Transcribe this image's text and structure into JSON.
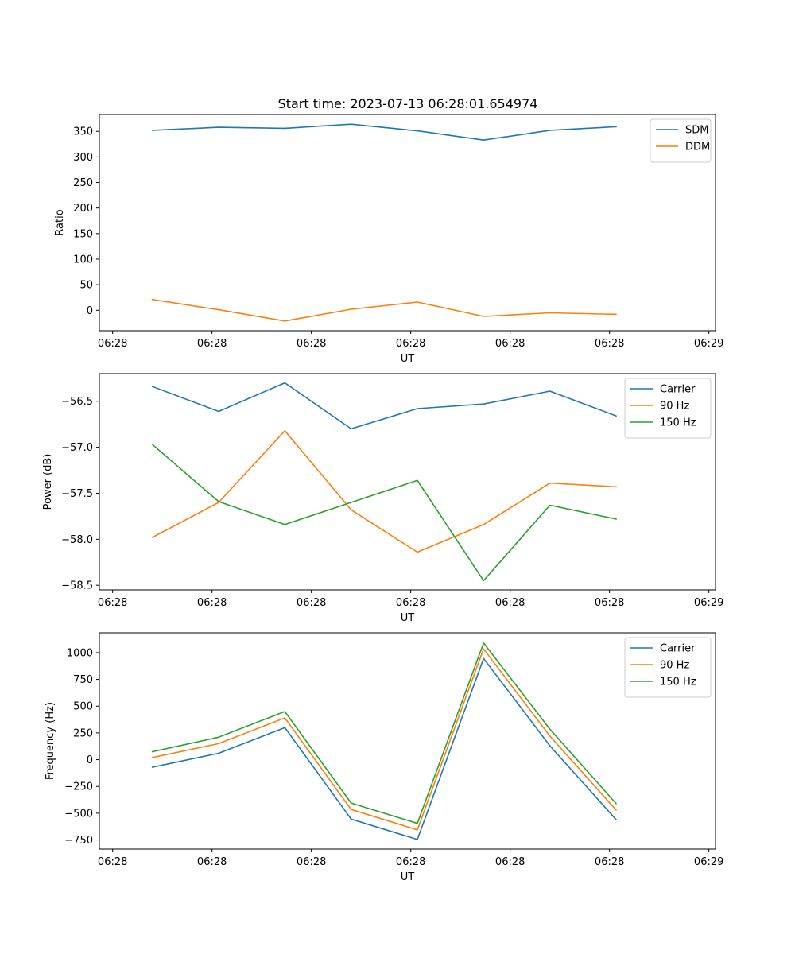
{
  "figure": {
    "title": "Start time: 2023-07-13 06:28:01.654974"
  },
  "colors": {
    "blue": "#1f77b4",
    "orange": "#ff7f0e",
    "green": "#2ca02c"
  },
  "chart_data": [
    {
      "type": "line",
      "title": "Start time: 2023-07-13 06:28:01.654974",
      "xlabel": "UT",
      "ylabel": "Ratio",
      "x": [
        1,
        2,
        3,
        4,
        5,
        6,
        7,
        8
      ],
      "xlim": [
        0.2,
        9.5
      ],
      "xticks": [
        0.4,
        1.9,
        3.4,
        4.9,
        6.4,
        7.9,
        9.4
      ],
      "xtick_labels": [
        "06:28",
        "06:28",
        "06:28",
        "06:28",
        "06:28",
        "06:28",
        "06:29"
      ],
      "ylim": [
        -40,
        383
      ],
      "yticks": [
        0,
        50,
        100,
        150,
        200,
        250,
        300,
        350
      ],
      "ytick_labels": [
        "0",
        "50",
        "100",
        "150",
        "200",
        "250",
        "300",
        "350"
      ],
      "legend_position": "top-right",
      "series": [
        {
          "name": "SDM",
          "color_key": "blue",
          "values": [
            352,
            358,
            356,
            364,
            351,
            333,
            352,
            359
          ]
        },
        {
          "name": "DDM",
          "color_key": "orange",
          "values": [
            21,
            1,
            -21,
            2,
            16,
            -12,
            -5,
            -8
          ]
        }
      ]
    },
    {
      "type": "line",
      "title": "",
      "xlabel": "UT",
      "ylabel": "Power (dB)",
      "x": [
        1,
        2,
        3,
        4,
        5,
        6,
        7,
        8
      ],
      "xlim": [
        0.2,
        9.5
      ],
      "xticks": [
        0.4,
        1.9,
        3.4,
        4.9,
        6.4,
        7.9,
        9.4
      ],
      "xtick_labels": [
        "06:28",
        "06:28",
        "06:28",
        "06:28",
        "06:28",
        "06:28",
        "06:29"
      ],
      "ylim": [
        -58.55,
        -56.2
      ],
      "yticks": [
        -58.5,
        -58.0,
        -57.5,
        -57.0,
        -56.5
      ],
      "ytick_labels": [
        "−58.5",
        "−58.0",
        "−57.5",
        "−57.0",
        "−56.5"
      ],
      "legend_position": "top-right",
      "series": [
        {
          "name": "Carrier",
          "color_key": "blue",
          "values": [
            -56.34,
            -56.61,
            -56.3,
            -56.8,
            -56.58,
            -56.53,
            -56.39,
            -56.66
          ]
        },
        {
          "name": "90 Hz",
          "color_key": "orange",
          "values": [
            -57.98,
            -57.6,
            -56.82,
            -57.68,
            -58.14,
            -57.84,
            -57.39,
            -57.43
          ]
        },
        {
          "name": "150 Hz",
          "color_key": "green",
          "values": [
            -56.97,
            -57.59,
            -57.84,
            -57.6,
            -57.36,
            -58.45,
            -57.63,
            -57.78
          ]
        }
      ]
    },
    {
      "type": "line",
      "title": "",
      "xlabel": "UT",
      "ylabel": "Frequency (Hz)",
      "x": [
        1,
        2,
        3,
        4,
        5,
        6,
        7,
        8
      ],
      "xlim": [
        0.2,
        9.5
      ],
      "xticks": [
        0.4,
        1.9,
        3.4,
        4.9,
        6.4,
        7.9,
        9.4
      ],
      "xtick_labels": [
        "06:28",
        "06:28",
        "06:28",
        "06:28",
        "06:28",
        "06:28",
        "06:29"
      ],
      "ylim": [
        -835,
        1185
      ],
      "yticks": [
        -750,
        -500,
        -250,
        0,
        250,
        500,
        750,
        1000
      ],
      "ytick_labels": [
        "−750",
        "−500",
        "−250",
        "0",
        "250",
        "500",
        "750",
        "1000"
      ],
      "legend_position": "top-right",
      "series": [
        {
          "name": "Carrier",
          "color_key": "blue",
          "values": [
            -70,
            60,
            300,
            -555,
            -745,
            945,
            130,
            -560
          ]
        },
        {
          "name": "90 Hz",
          "color_key": "orange",
          "values": [
            20,
            150,
            390,
            -465,
            -655,
            1035,
            220,
            -470
          ]
        },
        {
          "name": "150 Hz",
          "color_key": "green",
          "values": [
            75,
            210,
            450,
            -405,
            -595,
            1090,
            285,
            -410
          ]
        }
      ]
    }
  ]
}
